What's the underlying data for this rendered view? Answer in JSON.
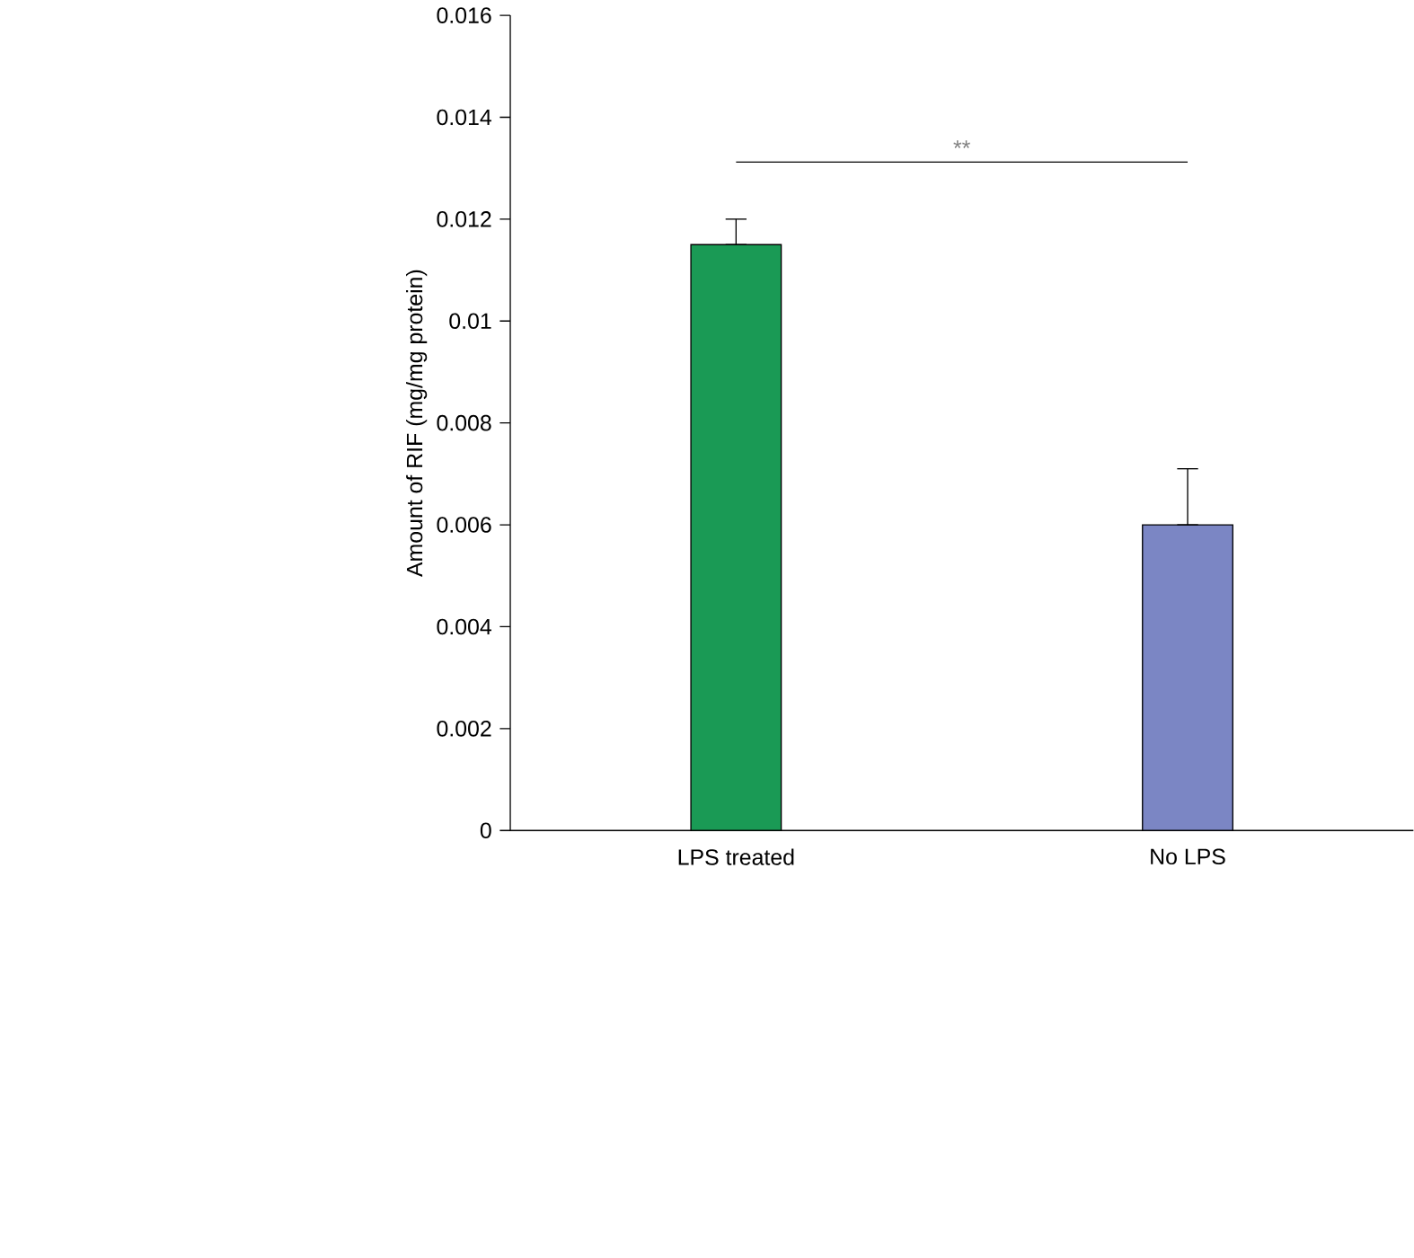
{
  "chart_data": {
    "type": "bar",
    "ylabel": "Amount of RIF (mg/mg protein)",
    "categories": [
      "LPS treated",
      "No LPS"
    ],
    "values": [
      0.0115,
      0.006
    ],
    "colors": [
      "#1a9a55",
      "#7b86c4"
    ],
    "errors": [
      [
        0.0115,
        0.012
      ],
      [
        0.006,
        0.0071
      ]
    ],
    "ylim": [
      0,
      0.016
    ],
    "yticks": [
      0,
      0.002,
      0.004,
      0.006,
      0.008,
      0.01,
      0.012,
      0.014,
      0.016
    ],
    "annotations": [
      "**"
    ]
  }
}
